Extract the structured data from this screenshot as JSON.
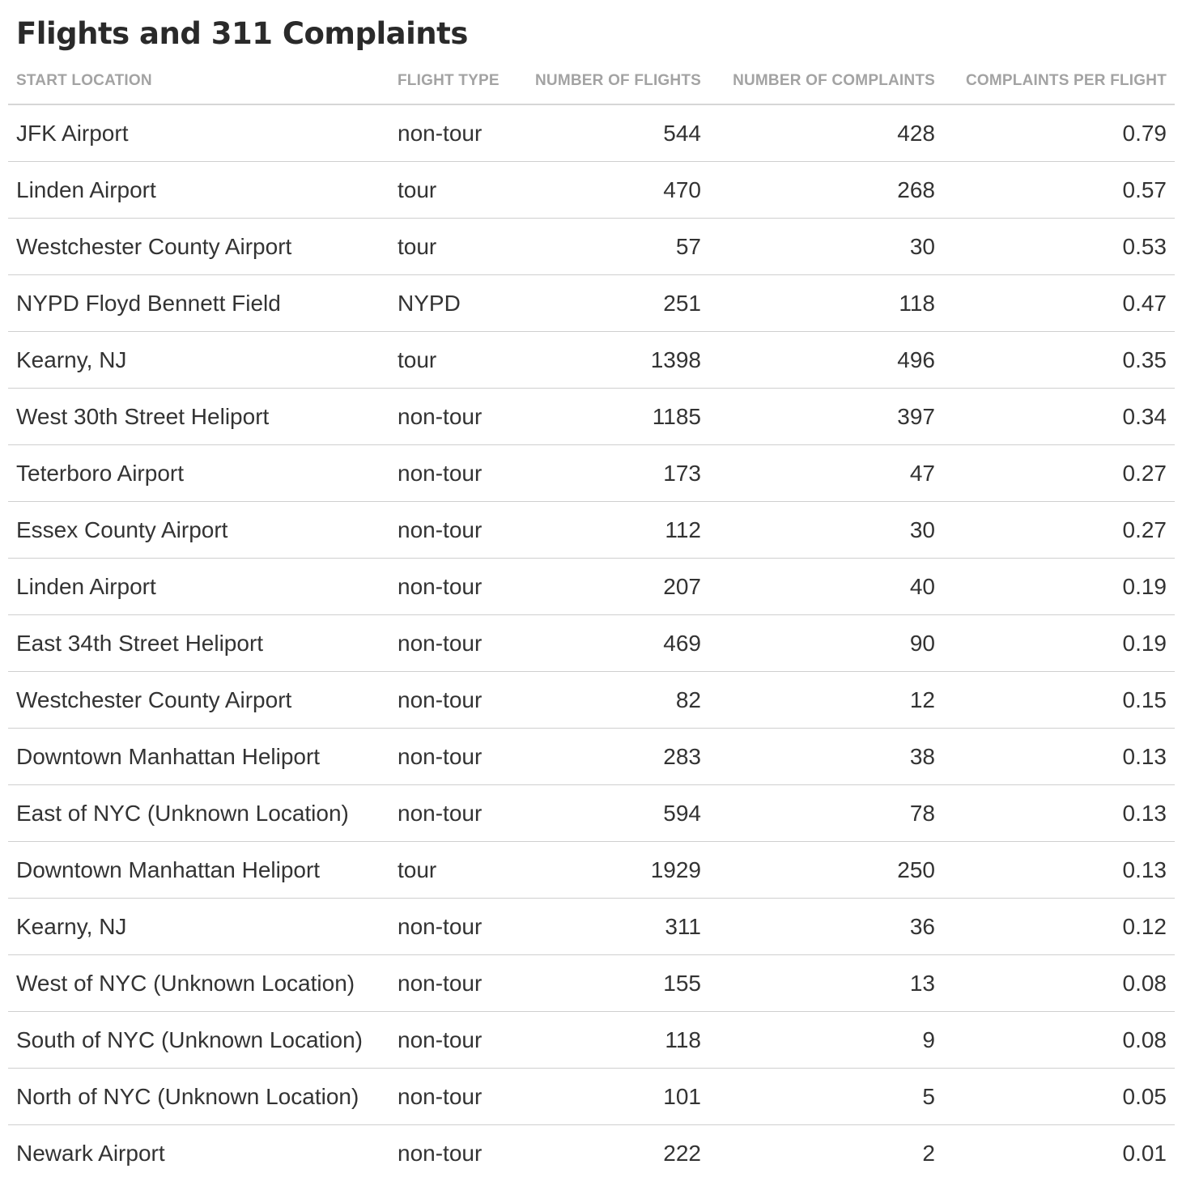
{
  "chart_data": {
    "type": "table",
    "title": "Flights and 311 Complaints",
    "columns": [
      "START LOCATION",
      "FLIGHT TYPE",
      "NUMBER OF FLIGHTS",
      "NUMBER OF COMPLAINTS",
      "COMPLAINTS PER FLIGHT"
    ],
    "rows": [
      {
        "location": "JFK Airport",
        "type": "non-tour",
        "flights": "544",
        "complaints": "428",
        "per_flight": "0.79"
      },
      {
        "location": "Linden Airport",
        "type": "tour",
        "flights": "470",
        "complaints": "268",
        "per_flight": "0.57"
      },
      {
        "location": "Westchester County Airport",
        "type": "tour",
        "flights": "57",
        "complaints": "30",
        "per_flight": "0.53"
      },
      {
        "location": "NYPD Floyd Bennett Field",
        "type": "NYPD",
        "flights": "251",
        "complaints": "118",
        "per_flight": "0.47"
      },
      {
        "location": "Kearny, NJ",
        "type": "tour",
        "flights": "1398",
        "complaints": "496",
        "per_flight": "0.35"
      },
      {
        "location": "West 30th Street Heliport",
        "type": "non-tour",
        "flights": "1185",
        "complaints": "397",
        "per_flight": "0.34"
      },
      {
        "location": "Teterboro Airport",
        "type": "non-tour",
        "flights": "173",
        "complaints": "47",
        "per_flight": "0.27"
      },
      {
        "location": "Essex County Airport",
        "type": "non-tour",
        "flights": "112",
        "complaints": "30",
        "per_flight": "0.27"
      },
      {
        "location": "Linden Airport",
        "type": "non-tour",
        "flights": "207",
        "complaints": "40",
        "per_flight": "0.19"
      },
      {
        "location": "East 34th Street Heliport",
        "type": "non-tour",
        "flights": "469",
        "complaints": "90",
        "per_flight": "0.19"
      },
      {
        "location": "Westchester County Airport",
        "type": "non-tour",
        "flights": "82",
        "complaints": "12",
        "per_flight": "0.15"
      },
      {
        "location": "Downtown Manhattan Heliport",
        "type": "non-tour",
        "flights": "283",
        "complaints": "38",
        "per_flight": "0.13"
      },
      {
        "location": "East of NYC (Unknown Location)",
        "type": "non-tour",
        "flights": "594",
        "complaints": "78",
        "per_flight": "0.13"
      },
      {
        "location": "Downtown Manhattan Heliport",
        "type": "tour",
        "flights": "1929",
        "complaints": "250",
        "per_flight": "0.13"
      },
      {
        "location": "Kearny, NJ",
        "type": "non-tour",
        "flights": "311",
        "complaints": "36",
        "per_flight": "0.12"
      },
      {
        "location": "West of NYC (Unknown Location)",
        "type": "non-tour",
        "flights": "155",
        "complaints": "13",
        "per_flight": "0.08"
      },
      {
        "location": "South of NYC (Unknown Location)",
        "type": "non-tour",
        "flights": "118",
        "complaints": "9",
        "per_flight": "0.08"
      },
      {
        "location": "North of NYC (Unknown Location)",
        "type": "non-tour",
        "flights": "101",
        "complaints": "5",
        "per_flight": "0.05"
      },
      {
        "location": "Newark Airport",
        "type": "non-tour",
        "flights": "222",
        "complaints": "2",
        "per_flight": "0.01"
      }
    ]
  },
  "colors": {
    "title": "#2a2a2a",
    "header_text": "#a3a3a3",
    "body_text": "#333333",
    "rule": "#cfcfcf"
  }
}
